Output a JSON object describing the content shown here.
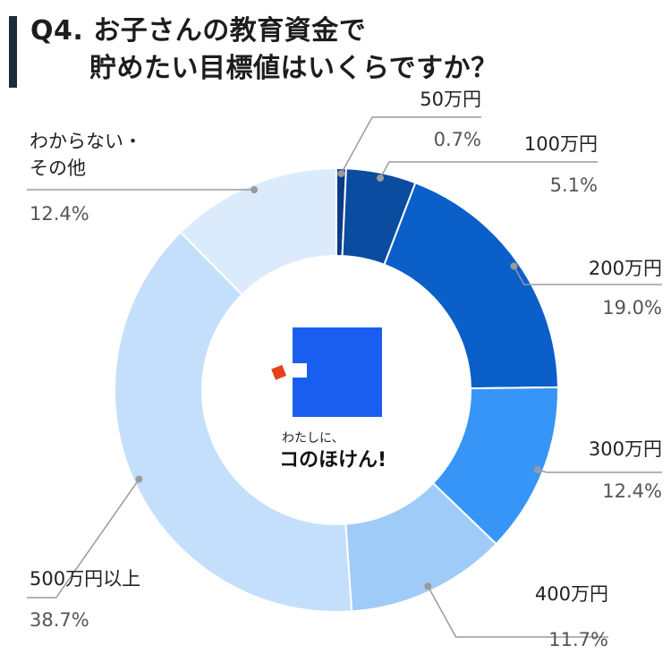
{
  "title": {
    "line1": "Q4. お子さんの教育資金で",
    "line2": "貯めたい目標値はいくらですか？"
  },
  "logo": {
    "subtitle": "わたしに、",
    "name": "コのほけん!",
    "color": "#1a5ef0",
    "accent": "#e8401c"
  },
  "chart_data": {
    "type": "pie",
    "donut": true,
    "categories": [
      "50万円",
      "100万円",
      "200万円",
      "300万円",
      "400万円",
      "500万円以上",
      "わからない・その他"
    ],
    "values": [
      0.7,
      5.1,
      19.0,
      12.4,
      11.7,
      38.7,
      12.4
    ],
    "labels": [
      "0.7%",
      "5.1%",
      "19.0%",
      "12.4%",
      "11.7%",
      "38.7%",
      "12.4%"
    ],
    "colors": [
      "#0b3a86",
      "#0a4c9f",
      "#0a5fc8",
      "#3795f7",
      "#9fcbf8",
      "#c4dffb",
      "#dcebfb"
    ],
    "unit": "%"
  }
}
